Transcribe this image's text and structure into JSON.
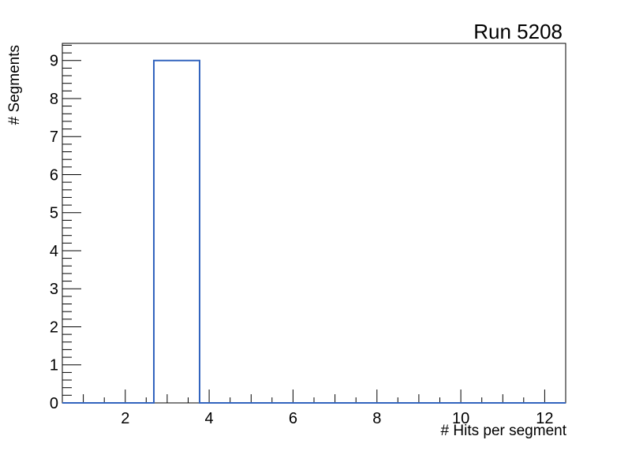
{
  "window": {
    "background_color": "#ffffff"
  },
  "chart_data": {
    "type": "bar",
    "title": "Run 5208",
    "xlabel": "# Hits per segment",
    "ylabel": "# Segments",
    "xlim": [
      0.5,
      12.5
    ],
    "ylim": [
      0,
      9.45
    ],
    "grid": false,
    "legend": false,
    "histogram": {
      "bin_start": 0.5,
      "bin_end": 12.5,
      "n_bins": 11,
      "counts": [
        0,
        0,
        9,
        0,
        0,
        0,
        0,
        0,
        0,
        0,
        0
      ],
      "peak_bin": {
        "x_low": 2.68,
        "x_high": 3.77,
        "count": 9
      }
    },
    "x_axis": {
      "major_ticks": [
        2,
        4,
        6,
        8,
        10,
        12
      ],
      "major_tick_labels": [
        "2",
        "4",
        "6",
        "8",
        "10",
        "12"
      ],
      "medium_ticks": [
        1,
        3,
        5,
        7,
        9,
        11
      ],
      "minor_tick_step": 0.5
    },
    "y_axis": {
      "major_ticks": [
        0,
        1,
        2,
        3,
        4,
        5,
        6,
        7,
        8,
        9
      ],
      "major_tick_labels": [
        "0",
        "1",
        "2",
        "3",
        "4",
        "5",
        "6",
        "7",
        "8",
        "9"
      ],
      "minor_tick_step": 0.2
    },
    "colors": {
      "histogram_line": "#3264be",
      "axis": "#000000",
      "text": "#000000"
    }
  }
}
